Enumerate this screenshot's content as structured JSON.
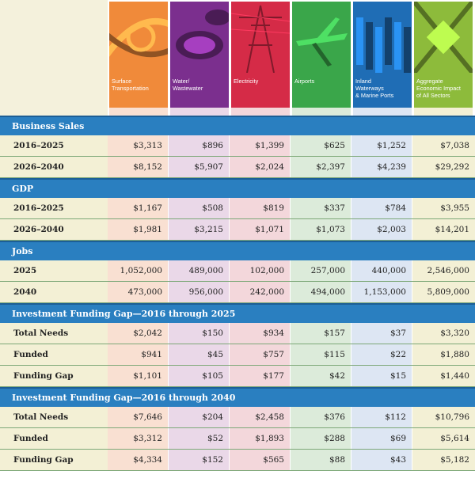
{
  "columns": [
    {
      "label_lines": [
        "Surface",
        "Transportation"
      ],
      "color": "#f08a3a"
    },
    {
      "label_lines": [
        "Water/",
        "Wastewater"
      ],
      "color": "#7b2f8e"
    },
    {
      "label_lines": [
        "Electricity"
      ],
      "color": "#d52b47"
    },
    {
      "label_lines": [
        "Airports"
      ],
      "color": "#3aa64a"
    },
    {
      "label_lines": [
        "Inland",
        "Waterways",
        "& Marine Ports"
      ],
      "color": "#1f6db5"
    },
    {
      "label_lines": [
        "Aggregate",
        "Economic Impact",
        "of All Sectors"
      ],
      "color": "#8dbb3b"
    }
  ],
  "sections": [
    {
      "title": "Business Sales",
      "rows": [
        {
          "label": "2016–2025",
          "values": [
            "$3,313",
            "$896",
            "$1,399",
            "$625",
            "$1,252",
            "$7,038"
          ]
        },
        {
          "label": "2026–2040",
          "values": [
            "$8,152",
            "$5,907",
            "$2,024",
            "$2,397",
            "$4,239",
            "$29,292"
          ]
        }
      ]
    },
    {
      "title": "GDP",
      "rows": [
        {
          "label": "2016–2025",
          "values": [
            "$1,167",
            "$508",
            "$819",
            "$337",
            "$784",
            "$3,955"
          ]
        },
        {
          "label": "2026–2040",
          "values": [
            "$1,981",
            "$3,215",
            "$1,071",
            "$1,073",
            "$2,003",
            "$14,201"
          ]
        }
      ]
    },
    {
      "title": "Jobs",
      "rows": [
        {
          "label": "2025",
          "values": [
            "1,052,000",
            "489,000",
            "102,000",
            "257,000",
            "440,000",
            "2,546,000"
          ]
        },
        {
          "label": "2040",
          "values": [
            "473,000",
            "956,000",
            "242,000",
            "494,000",
            "1,153,000",
            "5,809,000"
          ]
        }
      ]
    },
    {
      "title": "Investment Funding Gap—2016 through 2025",
      "rows": [
        {
          "label": "Total Needs",
          "values": [
            "$2,042",
            "$150",
            "$934",
            "$157",
            "$37",
            "$3,320"
          ]
        },
        {
          "label": "Funded",
          "values": [
            "$941",
            "$45",
            "$757",
            "$115",
            "$22",
            "$1,880"
          ]
        },
        {
          "label": "Funding Gap",
          "values": [
            "$1,101",
            "$105",
            "$177",
            "$42",
            "$15",
            "$1,440"
          ]
        }
      ]
    },
    {
      "title": "Investment Funding Gap—2016 through 2040",
      "rows": [
        {
          "label": "Total Needs",
          "values": [
            "$7,646",
            "$204",
            "$2,458",
            "$376",
            "$112",
            "$10,796"
          ]
        },
        {
          "label": "Funded",
          "values": [
            "$3,312",
            "$52",
            "$1,893",
            "$288",
            "$69",
            "$5,614"
          ]
        },
        {
          "label": "Funding Gap",
          "values": [
            "$4,334",
            "$152",
            "$565",
            "$88",
            "$43",
            "$5,182"
          ]
        }
      ]
    }
  ]
}
